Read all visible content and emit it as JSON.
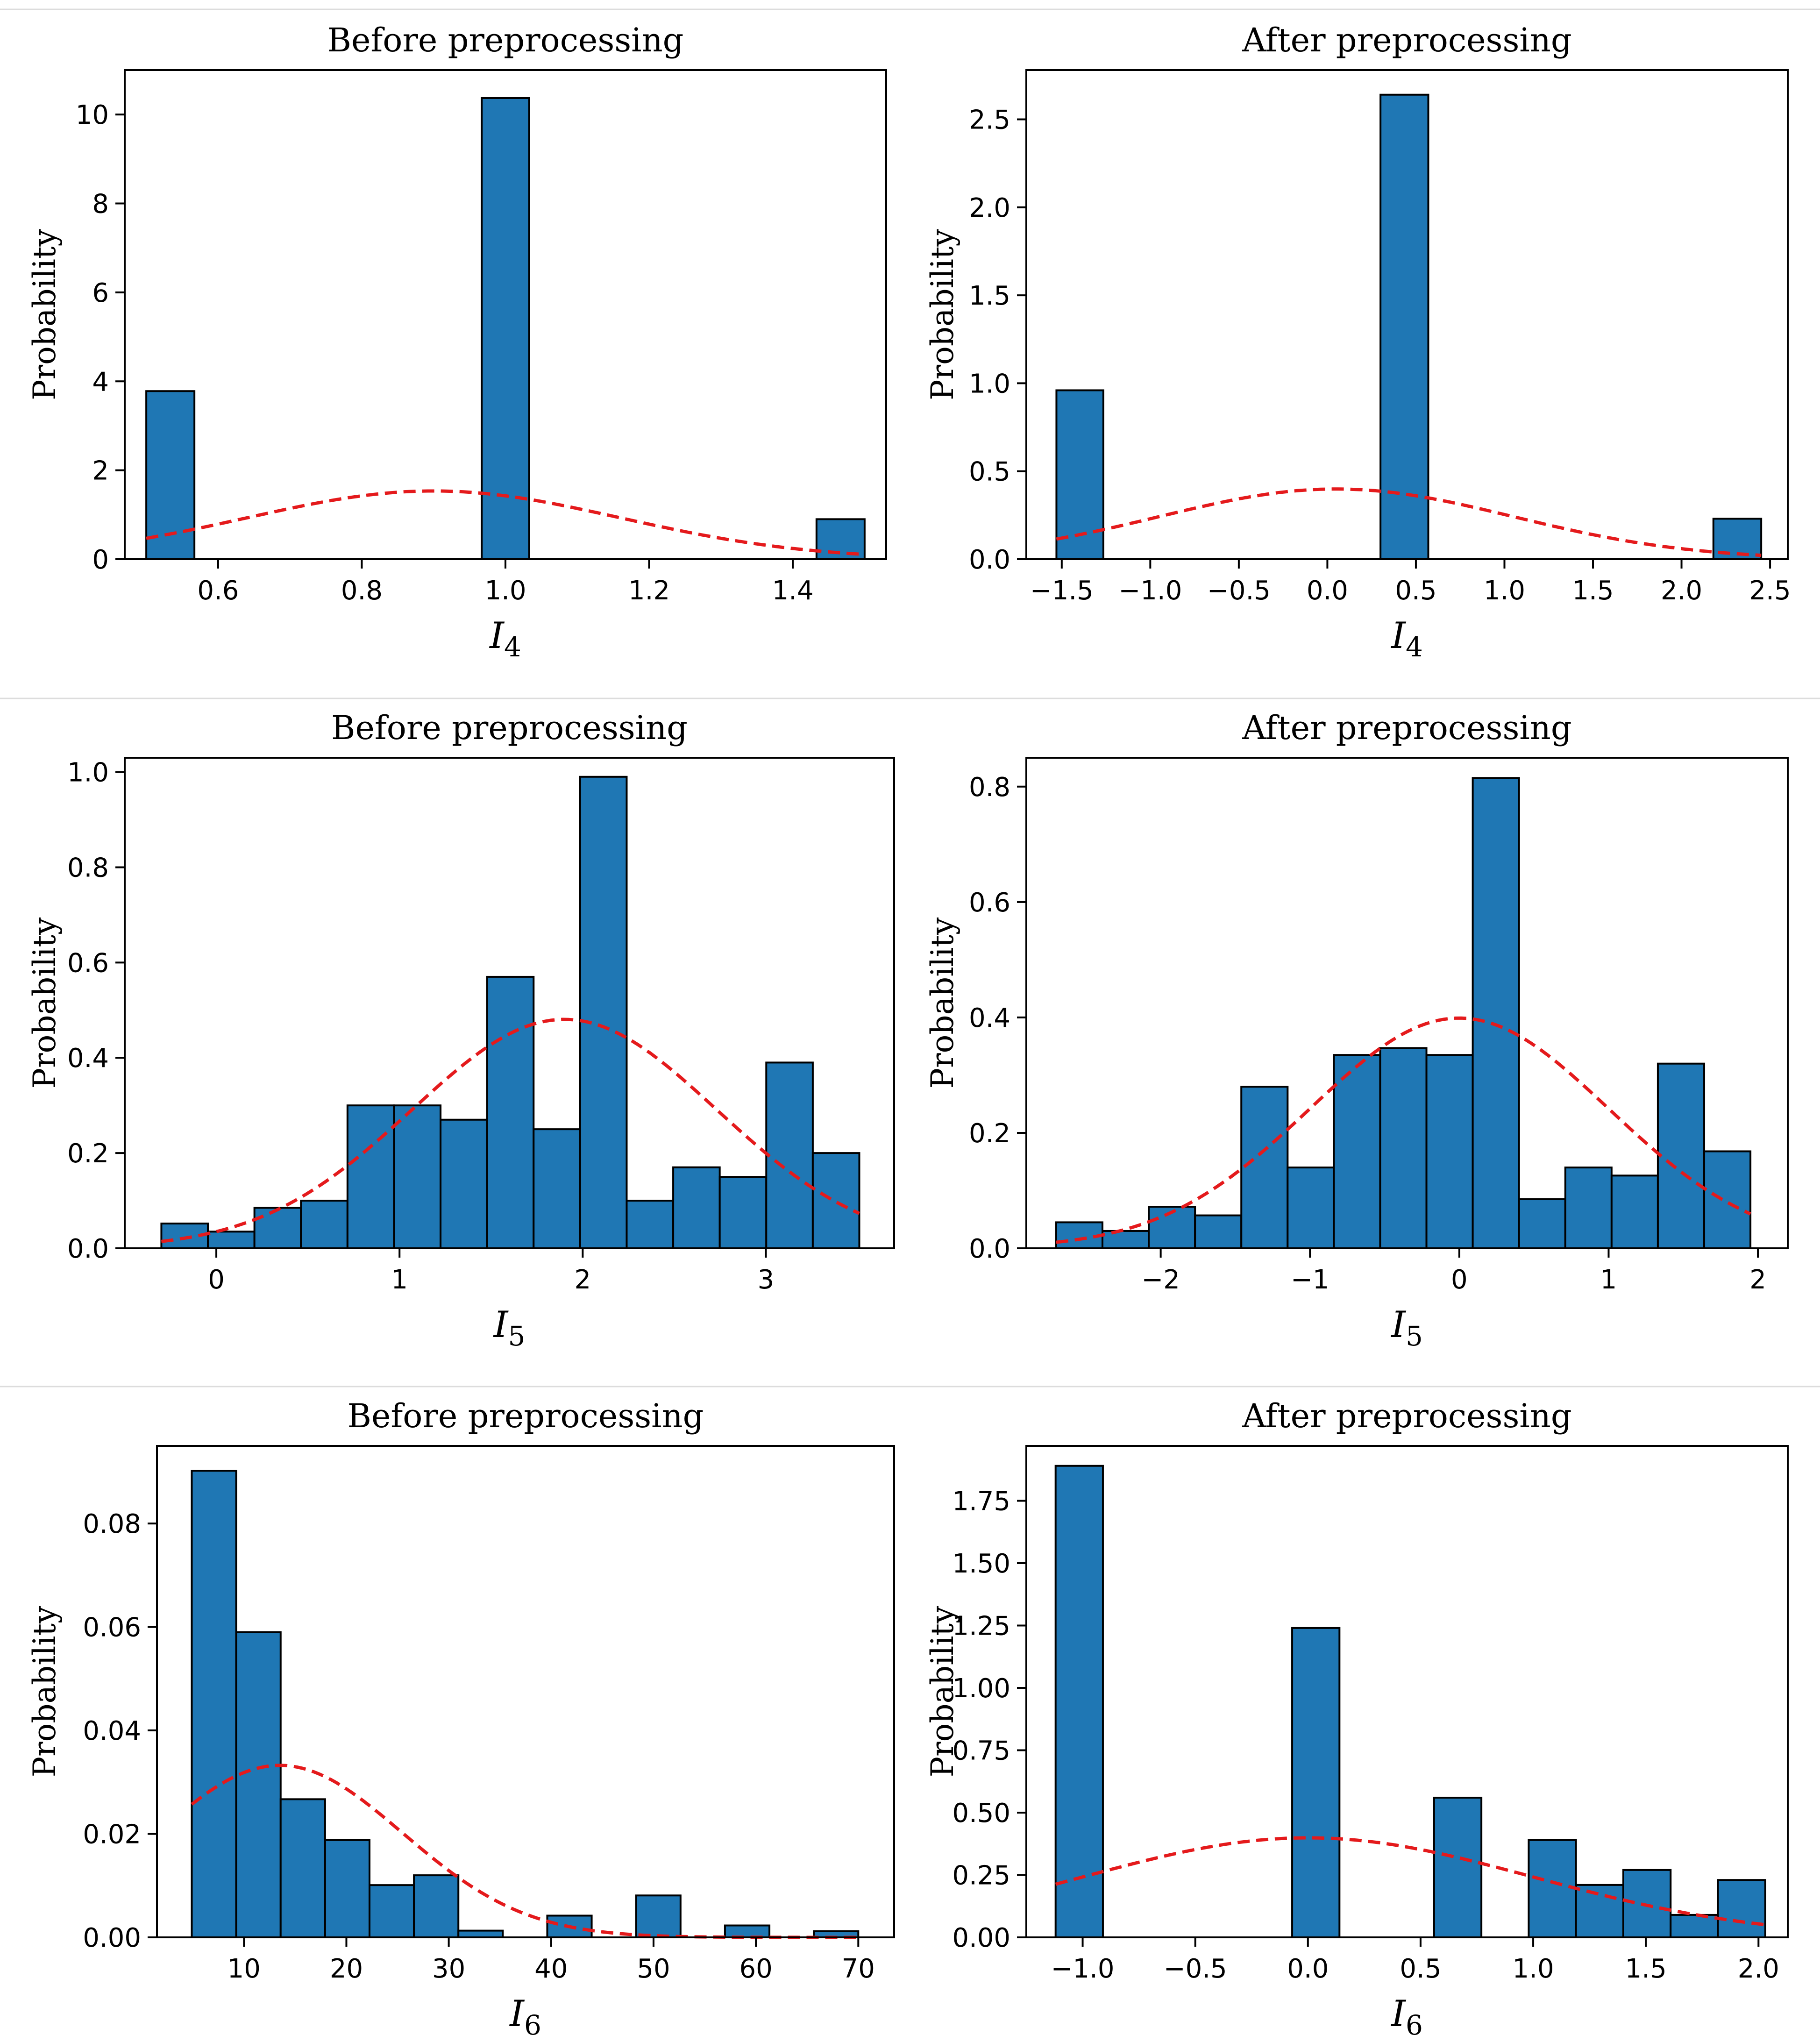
{
  "chart_data": [
    {
      "type": "bar",
      "panel": "row1-left",
      "title": "Before preprocessing",
      "ylabel": "Probability",
      "xlabel_base": "I",
      "xlabel_sub": "4",
      "xlim": [
        0.47,
        1.53
      ],
      "ylim": [
        0,
        11
      ],
      "xticks": [
        0.6,
        0.8,
        1.0,
        1.2,
        1.4
      ],
      "xtick_labels": [
        "0.6",
        "0.8",
        "1.0",
        "1.2",
        "1.4"
      ],
      "yticks": [
        0,
        2,
        4,
        6,
        8,
        10
      ],
      "ytick_labels": [
        "0",
        "2",
        "4",
        "6",
        "8",
        "10"
      ],
      "bins": [
        {
          "x0": 0.5,
          "x1": 0.567,
          "value": 3.78
        },
        {
          "x0": 0.967,
          "x1": 1.033,
          "value": 10.37
        },
        {
          "x0": 1.433,
          "x1": 1.5,
          "value": 0.9
        }
      ],
      "fit_curve": {
        "mean": 0.9,
        "std": 0.26
      }
    },
    {
      "type": "bar",
      "panel": "row1-right",
      "title": "After preprocessing",
      "ylabel": "Probability",
      "xlabel_base": "I",
      "xlabel_sub": "4",
      "xlim": [
        -1.7,
        2.6
      ],
      "ylim": [
        0,
        2.78
      ],
      "xticks": [
        -1.5,
        -1.0,
        -0.5,
        0.0,
        0.5,
        1.0,
        1.5,
        2.0,
        2.5
      ],
      "xtick_labels": [
        "−1.5",
        "−1.0",
        "−0.5",
        "0.0",
        "0.5",
        "1.0",
        "1.5",
        "2.0",
        "2.5"
      ],
      "yticks": [
        0.0,
        0.5,
        1.0,
        1.5,
        2.0,
        2.5
      ],
      "ytick_labels": [
        "0.0",
        "0.5",
        "1.0",
        "1.5",
        "2.0",
        "2.5"
      ],
      "bins": [
        {
          "x0": -1.53,
          "x1": -1.265,
          "value": 0.96
        },
        {
          "x0": 0.3,
          "x1": 0.57,
          "value": 2.64
        },
        {
          "x0": 2.18,
          "x1": 2.45,
          "value": 0.23
        }
      ],
      "fit_curve": {
        "mean": 0.05,
        "std": 1.0
      }
    },
    {
      "type": "bar",
      "panel": "row2-left",
      "title": "Before preprocessing",
      "ylabel": "Probability",
      "xlabel_base": "I",
      "xlabel_sub": "5",
      "xlim": [
        -0.5,
        3.7
      ],
      "ylim": [
        0,
        1.03
      ],
      "xticks": [
        0,
        1,
        2,
        3
      ],
      "xtick_labels": [
        "0",
        "1",
        "2",
        "3"
      ],
      "yticks": [
        0.0,
        0.2,
        0.4,
        0.6,
        0.8,
        1.0
      ],
      "ytick_labels": [
        "0.0",
        "0.2",
        "0.4",
        "0.6",
        "0.8",
        "1.0"
      ],
      "bin_start": -0.3,
      "bin_width": 0.254,
      "values": [
        0.052,
        0.035,
        0.085,
        0.1,
        0.3,
        0.3,
        0.27,
        0.57,
        0.25,
        0.99,
        0.1,
        0.17,
        0.15,
        0.39,
        0.2
      ],
      "fit_curve": {
        "mean": 1.9,
        "std": 0.83
      }
    },
    {
      "type": "bar",
      "panel": "row2-right",
      "title": "After preprocessing",
      "ylabel": "Probability",
      "xlabel_base": "I",
      "xlabel_sub": "5",
      "xlim": [
        -2.9,
        2.2
      ],
      "ylim": [
        0,
        0.85
      ],
      "xticks": [
        -2,
        -1,
        0,
        1,
        2
      ],
      "xtick_labels": [
        "−2",
        "−1",
        "0",
        "1",
        "2"
      ],
      "yticks": [
        0.0,
        0.2,
        0.4,
        0.6,
        0.8
      ],
      "ytick_labels": [
        "0.0",
        "0.2",
        "0.4",
        "0.6",
        "0.8"
      ],
      "bin_start": -2.7,
      "bin_width": 0.31,
      "values": [
        0.045,
        0.03,
        0.072,
        0.057,
        0.28,
        0.14,
        0.335,
        0.347,
        0.335,
        0.815,
        0.085,
        0.14,
        0.126,
        0.32,
        0.168
      ],
      "fit_curve": {
        "mean": 0.0,
        "std": 1.0
      }
    },
    {
      "type": "bar",
      "panel": "row3-left",
      "title": "Before preprocessing",
      "ylabel": "Probability",
      "xlabel_base": "I",
      "xlabel_sub": "6",
      "xlim": [
        1.5,
        73.5
      ],
      "ylim": [
        0,
        0.095
      ],
      "xticks": [
        10,
        20,
        30,
        40,
        50,
        60,
        70
      ],
      "xtick_labels": [
        "10",
        "20",
        "30",
        "40",
        "50",
        "60",
        "70"
      ],
      "yticks": [
        0.0,
        0.02,
        0.04,
        0.06,
        0.08
      ],
      "ytick_labels": [
        "0.00",
        "0.02",
        "0.04",
        "0.06",
        "0.08"
      ],
      "bin_start": 4.9,
      "bin_width": 4.34,
      "values": [
        0.0902,
        0.059,
        0.0267,
        0.0188,
        0.0101,
        0.012,
        0.0013,
        0.0,
        0.0042,
        0.0,
        0.0081,
        0.0,
        0.0023,
        0.0,
        0.0012
      ],
      "fit_curve": {
        "mean": 13.5,
        "std": 12.0
      }
    },
    {
      "type": "bar",
      "panel": "row3-right",
      "title": "After preprocessing",
      "ylabel": "Probability",
      "xlabel_base": "I",
      "xlabel_sub": "6",
      "xlim": [
        -1.25,
        2.13
      ],
      "ylim": [
        0,
        1.97
      ],
      "xticks": [
        -1.0,
        -0.5,
        0.0,
        0.5,
        1.0,
        1.5,
        2.0
      ],
      "xtick_labels": [
        "−1.0",
        "−0.5",
        "0.0",
        "0.5",
        "1.0",
        "1.5",
        "2.0"
      ],
      "yticks": [
        0.0,
        0.25,
        0.5,
        0.75,
        1.0,
        1.25,
        1.5,
        1.75
      ],
      "ytick_labels": [
        "0.00",
        "0.25",
        "0.50",
        "0.75",
        "1.00",
        "1.25",
        "1.50",
        "1.75"
      ],
      "bin_start": -1.12,
      "bin_width": 0.21,
      "values": [
        1.89,
        0.0,
        0.0,
        0.0,
        0.0,
        1.24,
        0.0,
        0.0,
        0.56,
        0.0,
        0.39,
        0.21,
        0.27,
        0.09,
        0.23
      ],
      "fit_curve": {
        "mean": 0.0,
        "std": 1.0
      }
    }
  ]
}
